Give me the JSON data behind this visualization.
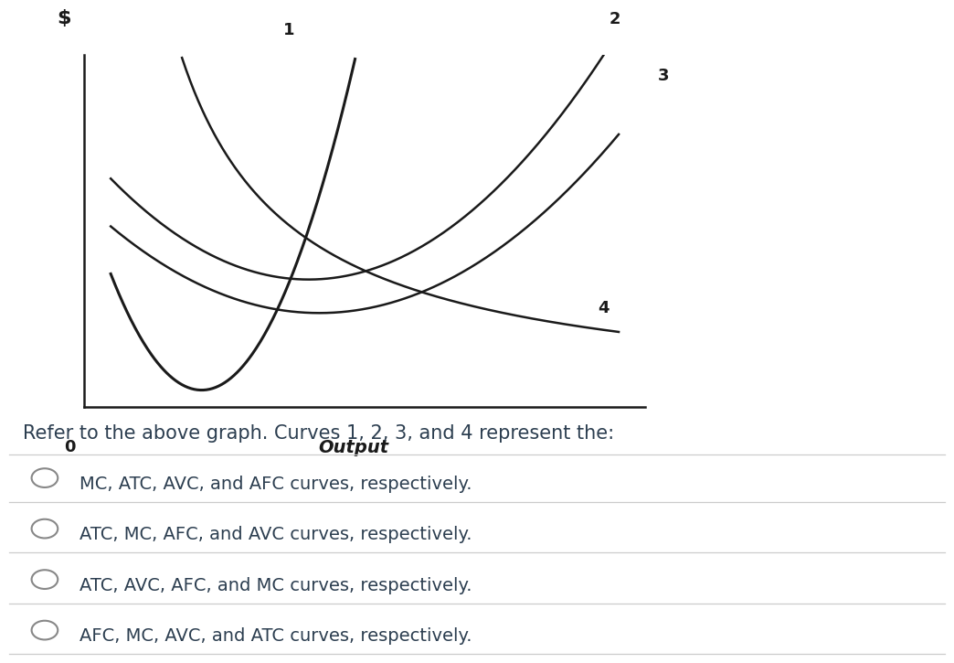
{
  "bg_color": "#ffffff",
  "graph_bg": "#ffffff",
  "xlabel": "Output",
  "ylabel": "$",
  "origin_label": "0",
  "curve_color": "#1a1a1a",
  "curve_linewidth": 1.8,
  "mc_linewidth": 2.2,
  "label1": "1",
  "label2": "2",
  "label3": "3",
  "label4": "4",
  "question_text": "Refer to the above graph. Curves 1, 2, 3, and 4 represent the:",
  "options": [
    "MC, ATC, AVC, and AFC curves, respectively.",
    "ATC, MC, AFC, and AVC curves, respectively.",
    "ATC, AVC, AFC, and MC curves, respectively.",
    "AFC, MC, AVC, and ATC curves, respectively."
  ],
  "option_text_color": "#2c3e50",
  "question_fontsize": 15,
  "option_fontsize": 14,
  "radio_color": "#888888",
  "separator_color": "#cccccc"
}
